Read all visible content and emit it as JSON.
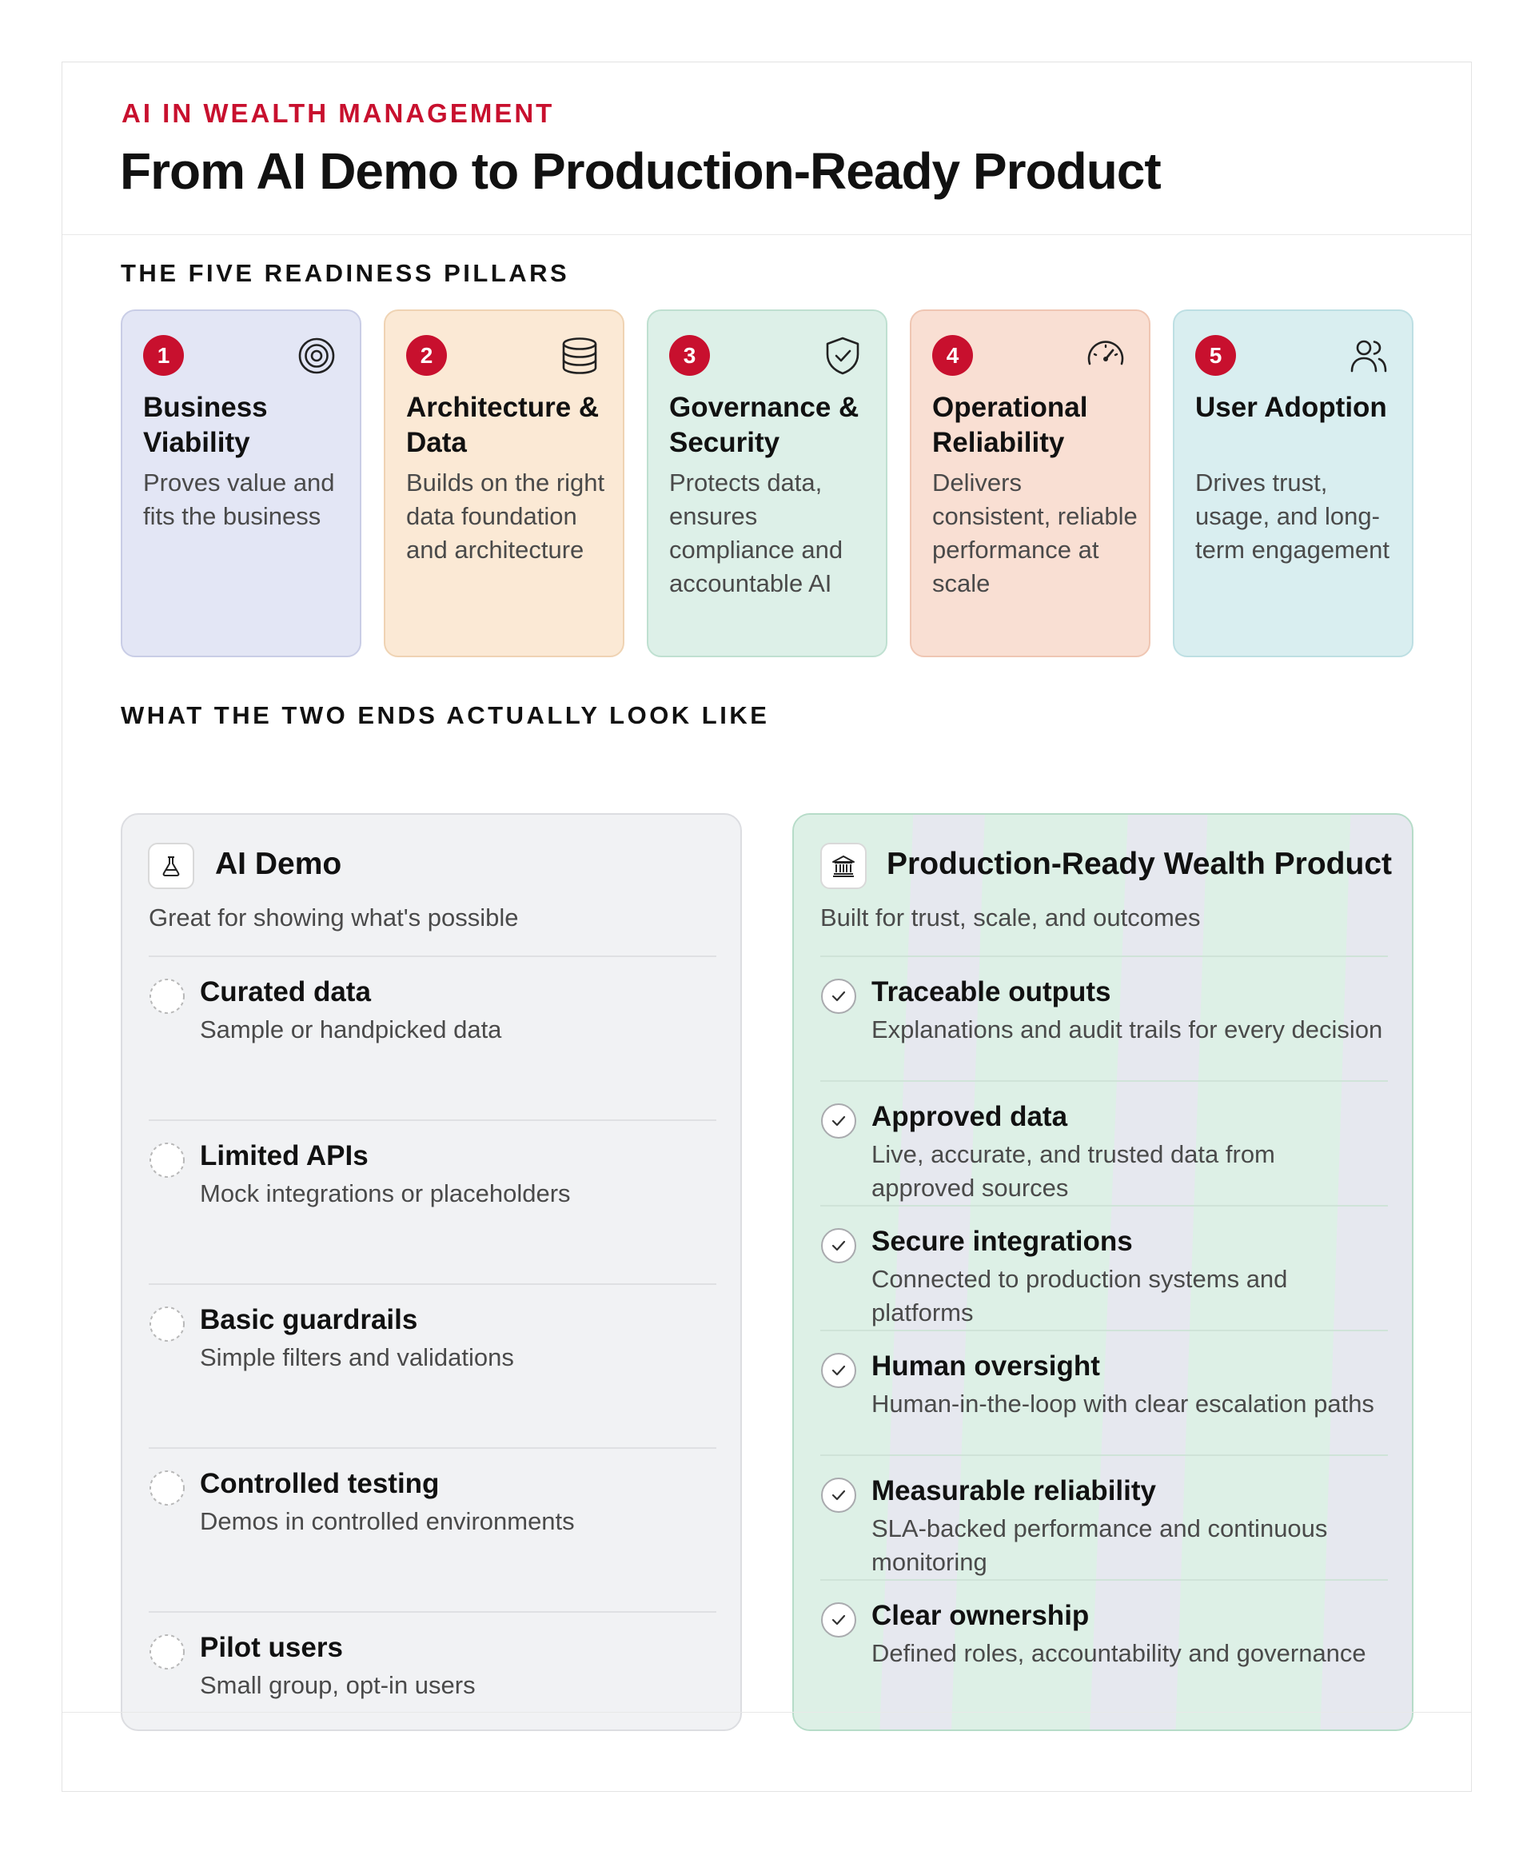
{
  "header": {
    "eyebrow": "AI IN WEALTH MANAGEMENT",
    "title": "From AI Demo to Production-Ready Product"
  },
  "pillars_section": {
    "label": "THE FIVE READINESS PILLARS",
    "items": [
      {
        "number": "1",
        "title": "Business Viability",
        "description": "Proves value and fits the business",
        "icon": "target-icon",
        "bg": "#e3e6f5",
        "border": "#c9cde6"
      },
      {
        "number": "2",
        "title": "Architecture & Data",
        "description": "Builds on the right data foundation and architecture",
        "icon": "database-icon",
        "bg": "#fbe9d5",
        "border": "#efd3b3"
      },
      {
        "number": "3",
        "title": "Governance & Security",
        "description": "Protects data, ensures compliance and accountable AI",
        "icon": "shield-check-icon",
        "bg": "#ddf0e8",
        "border": "#bfe0d1"
      },
      {
        "number": "4",
        "title": "Operational Reliability",
        "description": "Delivers consistent, reliable performance at scale",
        "icon": "speedometer-icon",
        "bg": "#f9dfd3",
        "border": "#efc6b3"
      },
      {
        "number": "5",
        "title": "User Adoption",
        "description": "Drives trust, usage, and long-term engagement",
        "icon": "users-icon",
        "bg": "#d9eef0",
        "border": "#bddfe3"
      }
    ]
  },
  "comparison_section": {
    "label": "WHAT THE TWO ENDS ACTUALLY LOOK LIKE",
    "demo": {
      "title": "AI Demo",
      "subtitle": "Great for showing what's possible",
      "icon": "flask-icon",
      "items": [
        {
          "title": "Curated data",
          "description": "Sample or handpicked data"
        },
        {
          "title": "Limited APIs",
          "description": "Mock integrations or placeholders"
        },
        {
          "title": "Basic guardrails",
          "description": "Simple filters and validations"
        },
        {
          "title": "Controlled testing",
          "description": "Demos in controlled environments"
        },
        {
          "title": "Pilot users",
          "description": "Small group, opt-in users"
        }
      ]
    },
    "production": {
      "title": "Production-Ready Wealth Product",
      "subtitle": "Built for trust, scale, and outcomes",
      "icon": "bank-icon",
      "items": [
        {
          "title": "Traceable outputs",
          "description": "Explanations and audit trails for every decision"
        },
        {
          "title": "Approved data",
          "description": "Live, accurate, and trusted data from approved sources"
        },
        {
          "title": "Secure integrations",
          "description": "Connected to production systems and platforms"
        },
        {
          "title": "Human oversight",
          "description": "Human-in-the-loop with clear escalation paths"
        },
        {
          "title": "Measurable reliability",
          "description": "SLA-backed performance and continuous monitoring"
        },
        {
          "title": "Clear ownership",
          "description": "Defined roles, accountability and governance"
        }
      ]
    },
    "arrow_icon": "arrow-right-icon"
  },
  "colors": {
    "accent": "#c8102e",
    "text": "#111111",
    "muted": "#4a4a4a",
    "demo_panel": "#f1f2f4",
    "production_panel": "#e6e8ef",
    "production_stripe": "#ddf0e6"
  }
}
